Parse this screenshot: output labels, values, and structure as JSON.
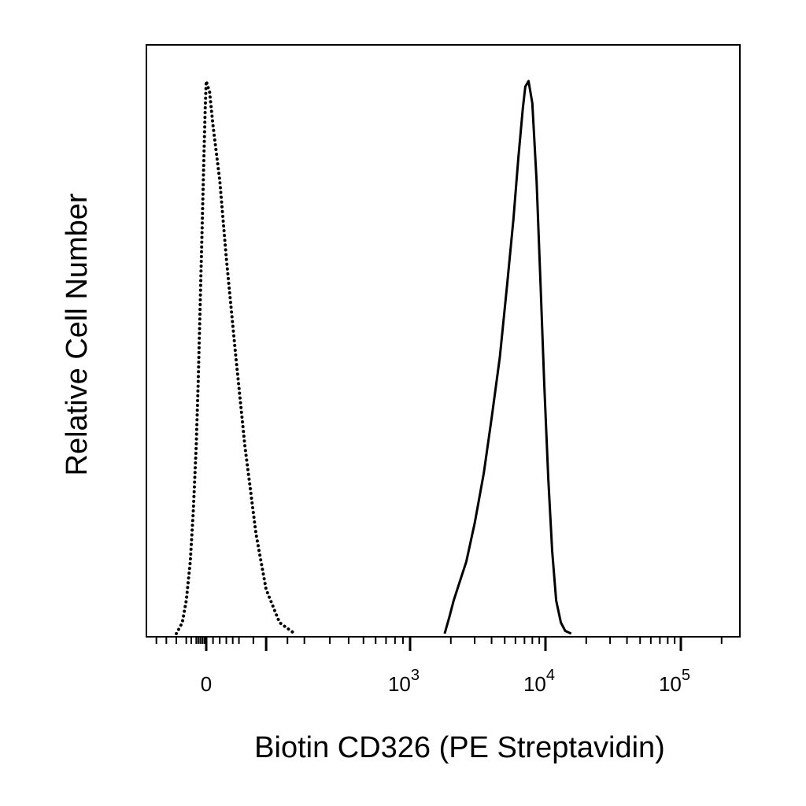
{
  "chart_data": {
    "type": "line",
    "title": "",
    "xlabel": "Biotin CD326 (PE Streptavidin)",
    "ylabel": "Relative Cell Number",
    "x_scale": "biexponential",
    "xlim": [
      -300,
      200000
    ],
    "ylim": [
      0,
      100
    ],
    "grid": false,
    "x_tick_labels": [
      {
        "value": 0,
        "base": "0",
        "exp": ""
      },
      {
        "value": 1000,
        "base": "10",
        "exp": "3"
      },
      {
        "value": 10000,
        "base": "10",
        "exp": "4"
      },
      {
        "value": 100000,
        "base": "10",
        "exp": "5"
      }
    ],
    "series": [
      {
        "style": "dotted",
        "color": "#000000",
        "x": [
          -150,
          -120,
          -100,
          -80,
          -65,
          -50,
          -40,
          -30,
          -20,
          -12,
          -5,
          0,
          5,
          10,
          20,
          30,
          45,
          60,
          80,
          100,
          130,
          170
        ],
        "y": [
          0,
          2,
          6,
          13,
          22,
          34,
          46,
          60,
          74,
          86,
          95,
          100,
          98,
          92,
          82,
          68,
          50,
          34,
          18,
          8,
          2,
          0
        ]
      },
      {
        "style": "solid",
        "color": "#000000",
        "x": [
          1800,
          1950,
          2100,
          2300,
          2600,
          3000,
          3500,
          4000,
          4600,
          5200,
          5800,
          6300,
          6800,
          7100,
          7500,
          8000,
          8600,
          9200,
          9800,
          10500,
          11200,
          12000,
          13000,
          14000,
          15500
        ],
        "y": [
          0,
          3,
          6,
          9,
          13,
          20,
          29,
          39,
          50,
          63,
          75,
          86,
          95,
          99,
          100,
          96,
          82,
          63,
          45,
          28,
          15,
          6,
          2,
          0.5,
          0
        ]
      }
    ]
  }
}
